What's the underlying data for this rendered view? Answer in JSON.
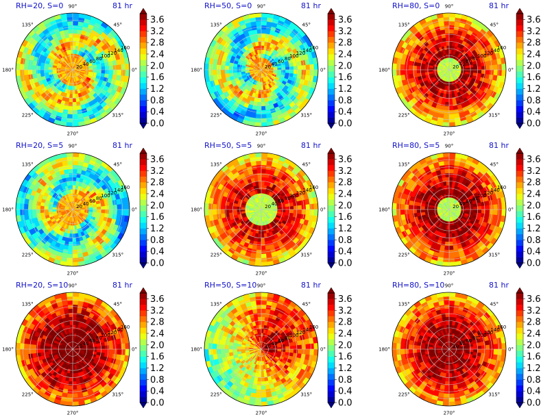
{
  "chart_data": {
    "type": "heatmap",
    "projection": "polar",
    "grid": true,
    "angular_ticks": [
      "0°",
      "45°",
      "90°",
      "135°",
      "180°",
      "225°",
      "270°",
      "315°"
    ],
    "radial_ticks": [
      "20",
      "40",
      "60",
      "80",
      "100",
      "120",
      "140",
      "160"
    ],
    "radial_values": [
      20,
      40,
      60,
      80,
      100,
      120,
      140,
      160
    ],
    "radial_label_angle_deg": 22.5,
    "colorbar": {
      "ticks": [
        "0.0",
        "0.4",
        "0.8",
        "1.2",
        "1.6",
        "2.0",
        "2.4",
        "2.8",
        "3.2",
        "3.6"
      ],
      "min": 0.0,
      "max": 3.8,
      "step": 0.2,
      "extend": "both",
      "colormap": "jet"
    },
    "panels": [
      {
        "title": "RH=20, S=0",
        "time": "81 hr",
        "pattern": "spiral",
        "mean_level": 2.6,
        "eye_radius": 25,
        "show_radial_labels": true
      },
      {
        "title": "RH=50, S=0",
        "time": "81 hr",
        "pattern": "spiral",
        "mean_level": 2.5,
        "eye_radius": 20,
        "show_radial_labels": true
      },
      {
        "title": "RH=80, S=0",
        "time": "81 hr",
        "pattern": "disc",
        "mean_level": 3.4,
        "eye_radius": 18,
        "show_radial_labels": true
      },
      {
        "title": "RH=20, S=5",
        "time": "81 hr",
        "pattern": "spiral",
        "mean_level": 2.5,
        "eye_radius": 22,
        "show_radial_labels": true
      },
      {
        "title": "RH=50, S=5",
        "time": "81 hr",
        "pattern": "disc",
        "mean_level": 3.3,
        "eye_radius": 22,
        "show_radial_labels": true
      },
      {
        "title": "RH=80, S=5",
        "time": "81 hr",
        "pattern": "disc",
        "mean_level": 3.5,
        "eye_radius": 20,
        "show_radial_labels": true
      },
      {
        "title": "RH=20, S=10",
        "time": "81 hr",
        "pattern": "disc",
        "mean_level": 3.6,
        "eye_radius": 0,
        "show_radial_labels": true
      },
      {
        "title": "RH=50, S=10",
        "time": "81 hr",
        "pattern": "sheared",
        "mean_level": 3.2,
        "eye_radius": 0,
        "show_radial_labels": true
      },
      {
        "title": "RH=80, S=10",
        "time": "81 hr",
        "pattern": "disc",
        "mean_level": 3.5,
        "eye_radius": 0,
        "show_radial_labels": true
      }
    ]
  }
}
